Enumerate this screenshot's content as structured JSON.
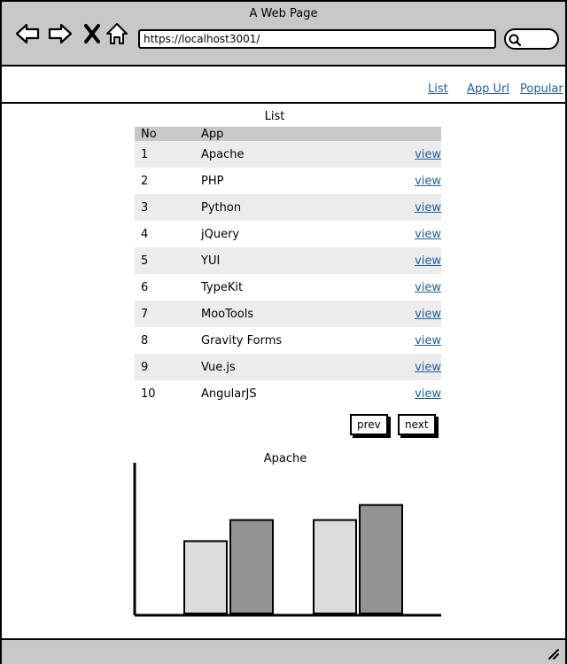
{
  "window": {
    "title": "A Web Page"
  },
  "toolbar": {
    "back_icon": "left-arrow",
    "forward_icon": "right-arrow",
    "stop_icon": "close-x",
    "home_icon": "home",
    "url": "https://localhost3001/",
    "search_icon": "magnifier"
  },
  "nav": {
    "links": [
      {
        "label": "List"
      },
      {
        "label": "App Url"
      },
      {
        "label": "Popular"
      }
    ]
  },
  "list": {
    "title": "List",
    "columns": [
      "No",
      "App"
    ],
    "rows": [
      {
        "no": "1",
        "app": "Apache",
        "link": "view"
      },
      {
        "no": "2",
        "app": "PHP",
        "link": "view"
      },
      {
        "no": "3",
        "app": "Python",
        "link": "view"
      },
      {
        "no": "4",
        "app": "jQuery",
        "link": "view"
      },
      {
        "no": "5",
        "app": "YUI",
        "link": "view"
      },
      {
        "no": "6",
        "app": "TypeKit",
        "link": "view"
      },
      {
        "no": "7",
        "app": "MooTools",
        "link": "view"
      },
      {
        "no": "8",
        "app": "Gravity Forms",
        "link": "view"
      },
      {
        "no": "9",
        "app": "Vue.js",
        "link": "view"
      },
      {
        "no": "10",
        "app": "AngularJS",
        "link": "view"
      }
    ]
  },
  "pagination": {
    "prev": "prev",
    "next": "next"
  },
  "chart_data": {
    "type": "bar",
    "title": "Apache",
    "categories": [
      "",
      ""
    ],
    "series": [
      {
        "values": [
          48,
          62
        ],
        "color": "#dcdcdc"
      },
      {
        "values": [
          62,
          72
        ],
        "color": "#939393"
      }
    ],
    "ylim": [
      0,
      100
    ],
    "xlabel": "",
    "ylabel": "",
    "grid": false,
    "legend": "none"
  },
  "colors": {
    "chrome": "#c8c8c8",
    "link": "#1f5fa8",
    "row_alt": "#ececec"
  }
}
